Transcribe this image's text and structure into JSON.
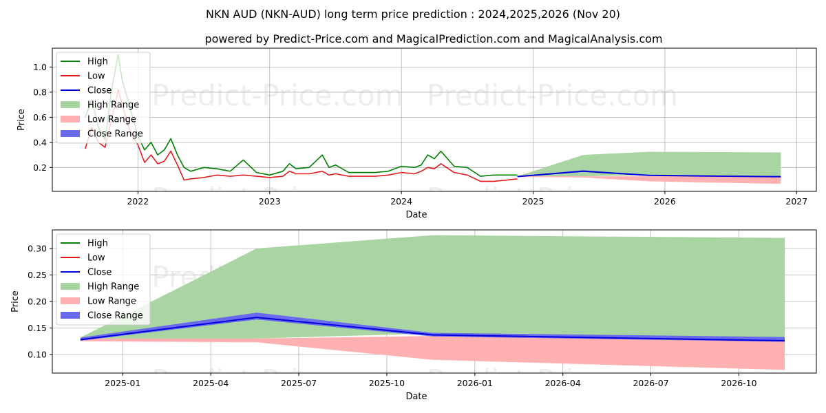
{
  "chart_data": [
    {
      "type": "line",
      "title": "NKN AUD (NKN-AUD) long term price prediction : 2024,2025,2026 (Nov 20)",
      "subtitle": "powered by Predict-Price.com and MagicalPrediction.com and MagicalAnalysis.com",
      "watermark": "Predict-Price.com",
      "xlabel": "Date",
      "ylabel": "Price",
      "xlim": [
        2021.35,
        2027.15
      ],
      "ylim": [
        0.01,
        1.15
      ],
      "x_ticks": [
        2022,
        2023,
        2024,
        2025,
        2026,
        2027
      ],
      "x_tick_labels": [
        "2022",
        "2023",
        "2024",
        "2025",
        "2026",
        "2027"
      ],
      "y_ticks": [
        0.2,
        0.4,
        0.6,
        0.8,
        1.0
      ],
      "y_tick_labels": [
        "0.2",
        "0.4",
        "0.6",
        "0.8",
        "1.0"
      ],
      "grid": true,
      "legend_position": "top-left",
      "legend": [
        "High",
        "Low",
        "Close",
        "High Range",
        "Low Range",
        "Close Range"
      ],
      "colors": {
        "high": "#008000",
        "low": "#e31a1c",
        "close": "#0000dd",
        "high_range": "#a8d5a2",
        "low_range": "#ffb0b0",
        "close_range": "#6a6aee"
      },
      "series": [
        {
          "name": "High",
          "x": [
            2021.6,
            2021.65,
            2021.7,
            2021.75,
            2021.8,
            2021.85,
            2021.88,
            2021.92,
            2021.96,
            2022.0,
            2022.05,
            2022.1,
            2022.15,
            2022.2,
            2022.25,
            2022.3,
            2022.35,
            2022.4,
            2022.5,
            2022.6,
            2022.7,
            2022.8,
            2022.9,
            2023.0,
            2023.1,
            2023.15,
            2023.2,
            2023.3,
            2023.4,
            2023.45,
            2023.5,
            2023.6,
            2023.7,
            2023.8,
            2023.9,
            2024.0,
            2024.1,
            2024.15,
            2024.2,
            2024.25,
            2024.3,
            2024.4,
            2024.5,
            2024.6,
            2024.7,
            2024.8,
            2024.88
          ],
          "values": [
            0.6,
            0.74,
            0.52,
            0.42,
            0.82,
            1.1,
            0.9,
            0.75,
            0.6,
            0.45,
            0.34,
            0.4,
            0.3,
            0.34,
            0.43,
            0.3,
            0.2,
            0.17,
            0.2,
            0.19,
            0.17,
            0.26,
            0.16,
            0.14,
            0.17,
            0.23,
            0.19,
            0.2,
            0.3,
            0.2,
            0.22,
            0.16,
            0.16,
            0.16,
            0.17,
            0.21,
            0.2,
            0.22,
            0.3,
            0.27,
            0.33,
            0.21,
            0.2,
            0.13,
            0.14,
            0.14,
            0.14
          ]
        },
        {
          "name": "Low",
          "x": [
            2021.6,
            2021.65,
            2021.7,
            2021.75,
            2021.8,
            2021.85,
            2021.88,
            2021.92,
            2021.96,
            2022.0,
            2022.05,
            2022.1,
            2022.15,
            2022.2,
            2022.25,
            2022.3,
            2022.35,
            2022.4,
            2022.5,
            2022.6,
            2022.7,
            2022.8,
            2022.9,
            2023.0,
            2023.1,
            2023.15,
            2023.2,
            2023.3,
            2023.4,
            2023.45,
            2023.5,
            2023.6,
            2023.7,
            2023.8,
            2023.9,
            2024.0,
            2024.1,
            2024.15,
            2024.2,
            2024.25,
            2024.3,
            2024.4,
            2024.5,
            2024.6,
            2024.7,
            2024.8,
            2024.88
          ],
          "values": [
            0.35,
            0.52,
            0.4,
            0.36,
            0.58,
            0.82,
            0.7,
            0.55,
            0.45,
            0.38,
            0.24,
            0.3,
            0.23,
            0.25,
            0.33,
            0.22,
            0.1,
            0.11,
            0.12,
            0.14,
            0.13,
            0.14,
            0.13,
            0.12,
            0.13,
            0.17,
            0.15,
            0.15,
            0.17,
            0.14,
            0.15,
            0.13,
            0.13,
            0.13,
            0.14,
            0.16,
            0.15,
            0.17,
            0.2,
            0.19,
            0.23,
            0.16,
            0.14,
            0.09,
            0.09,
            0.1,
            0.11
          ]
        },
        {
          "name": "Close",
          "x": [
            2024.88,
            2025.38,
            2025.88,
            2026.88
          ],
          "values": [
            0.128,
            0.17,
            0.137,
            0.126
          ]
        }
      ],
      "ranges": {
        "x": [
          2024.88,
          2025.38,
          2025.88,
          2026.88
        ],
        "high_range": {
          "low": [
            0.13,
            0.13,
            0.14,
            0.13
          ],
          "high": [
            0.13,
            0.3,
            0.325,
            0.32
          ]
        },
        "low_range": {
          "low": [
            0.125,
            0.12,
            0.09,
            0.07
          ],
          "high": [
            0.13,
            0.13,
            0.13,
            0.13
          ]
        },
        "close_range": {
          "low": [
            0.126,
            0.167,
            0.134,
            0.124
          ],
          "high": [
            0.131,
            0.178,
            0.141,
            0.132
          ]
        }
      }
    },
    {
      "type": "line",
      "watermark": "Predict-Price.com",
      "xlabel": "Date",
      "ylabel": "Price",
      "xlim": [
        2024.8,
        2026.97
      ],
      "ylim": [
        0.065,
        0.335
      ],
      "x_ticks": [
        2025.0,
        2025.25,
        2025.5,
        2025.75,
        2026.0,
        2026.25,
        2026.5,
        2026.75
      ],
      "x_tick_labels": [
        "2025-01",
        "2025-04",
        "2025-07",
        "2025-10",
        "2026-01",
        "2026-04",
        "2026-07",
        "2026-10"
      ],
      "y_ticks": [
        0.1,
        0.15,
        0.2,
        0.25,
        0.3
      ],
      "y_tick_labels": [
        "0.10",
        "0.15",
        "0.20",
        "0.25",
        "0.30"
      ],
      "grid": true,
      "legend_position": "top-left",
      "legend": [
        "High",
        "Low",
        "Close",
        "High Range",
        "Low Range",
        "Close Range"
      ],
      "series": [
        {
          "name": "Close",
          "x": [
            2024.88,
            2025.38,
            2025.88,
            2026.88
          ],
          "values": [
            0.128,
            0.17,
            0.137,
            0.126
          ]
        }
      ],
      "ranges": {
        "x": [
          2024.88,
          2025.38,
          2025.88,
          2026.88
        ],
        "high_range": {
          "low": [
            0.13,
            0.13,
            0.14,
            0.13
          ],
          "high": [
            0.132,
            0.3,
            0.325,
            0.32
          ]
        },
        "low_range": {
          "low": [
            0.125,
            0.123,
            0.09,
            0.071
          ],
          "high": [
            0.13,
            0.13,
            0.135,
            0.13
          ]
        },
        "close_range": {
          "low": [
            0.126,
            0.166,
            0.134,
            0.124
          ],
          "high": [
            0.132,
            0.179,
            0.141,
            0.133
          ]
        }
      }
    }
  ]
}
